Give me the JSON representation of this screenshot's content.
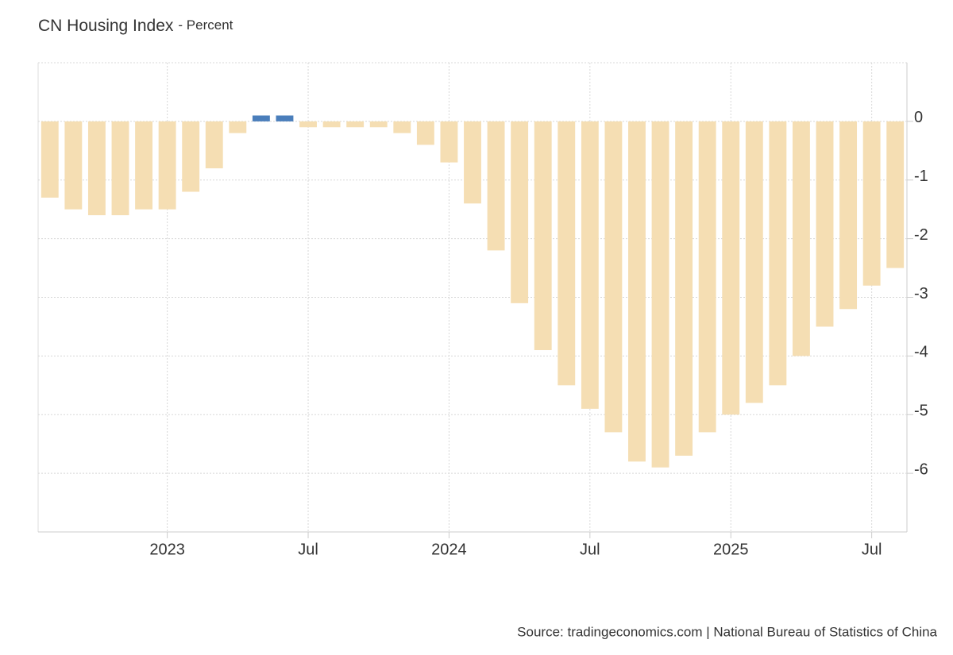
{
  "chart_data": {
    "type": "bar",
    "title": "CN Housing Index",
    "subtitle": "- Percent",
    "source": "Source: tradingeconomics.com | National Bureau of Statistics of China",
    "x": [
      "2022-08",
      "2022-09",
      "2022-10",
      "2022-11",
      "2022-12",
      "2023-01",
      "2023-02",
      "2023-03",
      "2023-04",
      "2023-05",
      "2023-06",
      "2023-07",
      "2023-08",
      "2023-09",
      "2023-10",
      "2023-11",
      "2023-12",
      "2024-01",
      "2024-02",
      "2024-03",
      "2024-04",
      "2024-05",
      "2024-06",
      "2024-07",
      "2024-08",
      "2024-09",
      "2024-10",
      "2024-11",
      "2024-12",
      "2025-01",
      "2025-02",
      "2025-03",
      "2025-04",
      "2025-05",
      "2025-06",
      "2025-07",
      "2025-08"
    ],
    "values": [
      -1.3,
      -1.5,
      -1.6,
      -1.6,
      -1.5,
      -1.5,
      -1.2,
      -0.8,
      -0.2,
      0.1,
      0.1,
      -0.1,
      -0.1,
      -0.1,
      -0.1,
      -0.2,
      -0.4,
      -0.7,
      -1.4,
      -2.2,
      -3.1,
      -3.9,
      -4.5,
      -4.9,
      -5.3,
      -5.8,
      -5.9,
      -5.7,
      -5.3,
      -5.0,
      -4.8,
      -4.5,
      -4.0,
      -3.5,
      -3.2,
      -2.8,
      -2.5
    ],
    "colors": {
      "positive": "#4a7ebb",
      "negative": "#f5deb3"
    },
    "xticks": [
      {
        "value": "2023-01",
        "label": "2023"
      },
      {
        "value": "2023-07",
        "label": "Jul"
      },
      {
        "value": "2024-01",
        "label": "2024"
      },
      {
        "value": "2024-07",
        "label": "Jul"
      },
      {
        "value": "2025-01",
        "label": "2025"
      },
      {
        "value": "2025-07",
        "label": "Jul"
      }
    ],
    "ylim": [
      -7,
      1
    ],
    "yticks": [
      0,
      -1,
      -2,
      -3,
      -4,
      -5,
      -6
    ],
    "grid": true
  }
}
